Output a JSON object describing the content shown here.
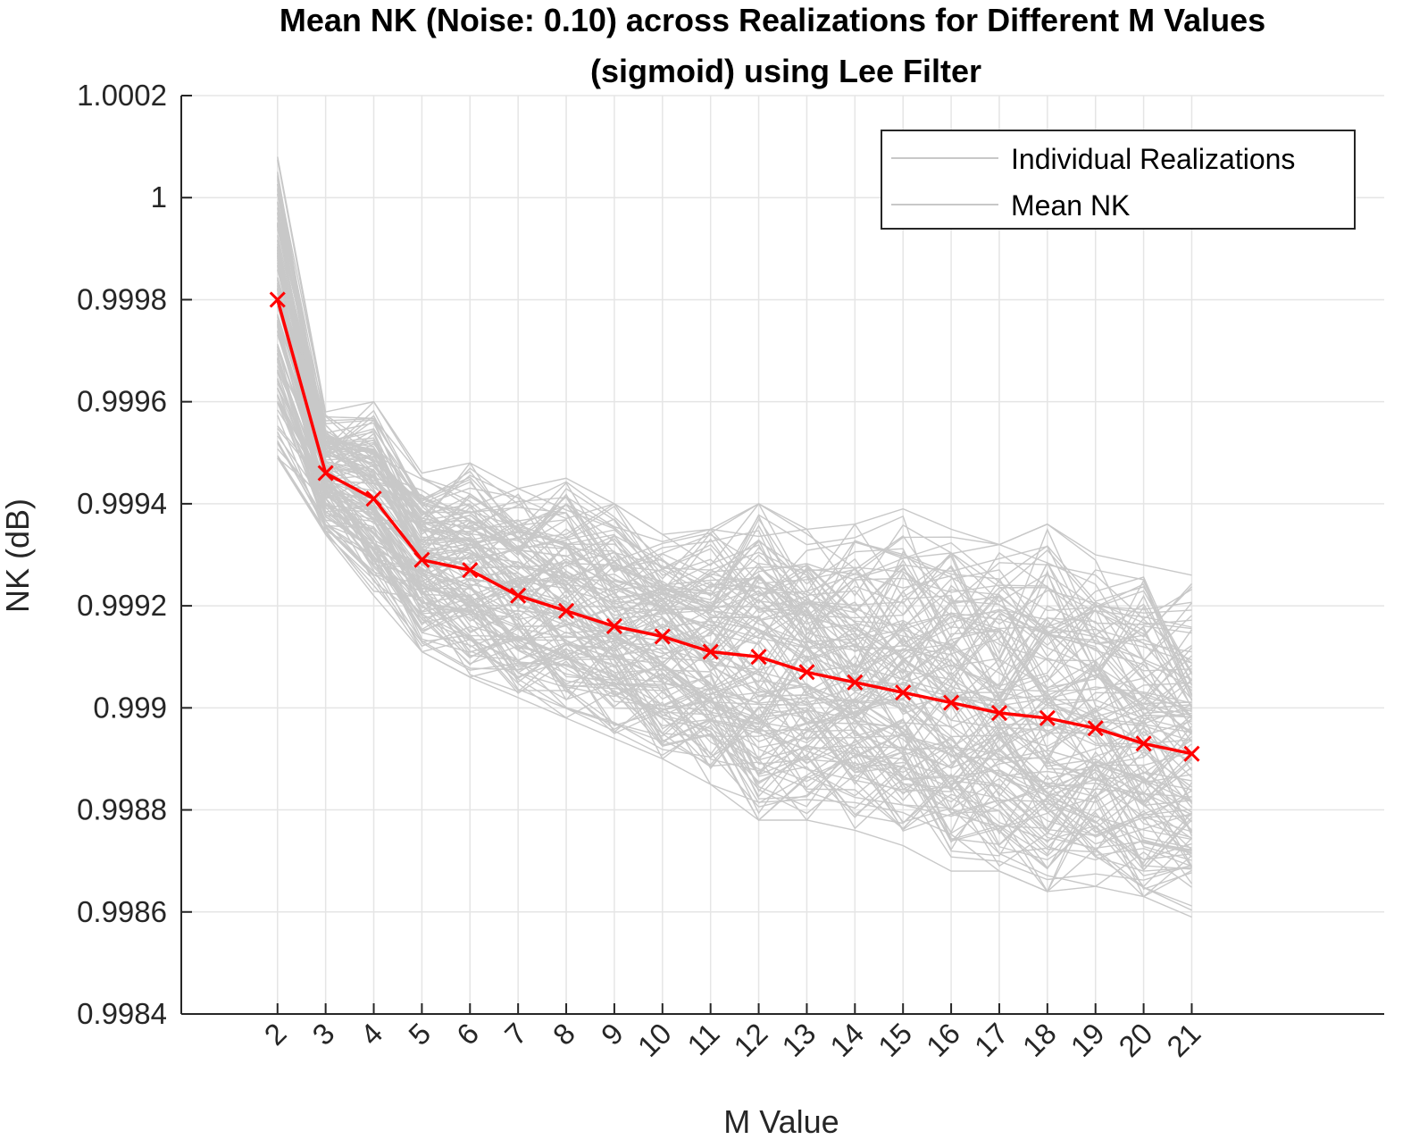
{
  "chart_data": {
    "type": "line",
    "title_line1": "Mean NK (Noise: 0.10) across Realizations for Different M Values",
    "title_line2": "(sigmoid) using Lee Filter",
    "xlabel": "M Value",
    "ylabel": "NK (dB)",
    "x": [
      2,
      3,
      4,
      5,
      6,
      7,
      8,
      9,
      10,
      11,
      12,
      13,
      14,
      15,
      16,
      17,
      18,
      19,
      20,
      21
    ],
    "xlim": [
      0,
      25
    ],
    "ylim": [
      0.9984,
      1.0002
    ],
    "yticks": [
      0.9984,
      0.9986,
      0.9988,
      0.999,
      0.9992,
      0.9994,
      0.9996,
      0.9998,
      1,
      1.0002
    ],
    "ytick_labels": [
      "0.9984",
      "0.9986",
      "0.9988",
      "0.999",
      "0.9992",
      "0.9994",
      "0.9996",
      "0.9998",
      "1",
      "1.0002"
    ],
    "xtick_labels": [
      "2",
      "3",
      "4",
      "5",
      "6",
      "7",
      "8",
      "9",
      "10",
      "11",
      "12",
      "13",
      "14",
      "15",
      "16",
      "17",
      "18",
      "19",
      "20",
      "21"
    ],
    "grid": true,
    "legend": {
      "placement": "top-right",
      "entries": [
        "Individual Realizations",
        "Mean NK"
      ]
    },
    "series": [
      {
        "name": "Mean NK",
        "color": "#ff0000",
        "marker": "x",
        "values": [
          0.9998,
          0.99946,
          0.99941,
          0.99929,
          0.99927,
          0.99922,
          0.99919,
          0.99916,
          0.99914,
          0.99911,
          0.9991,
          0.99907,
          0.99905,
          0.99903,
          0.99901,
          0.99899,
          0.99898,
          0.99896,
          0.99893,
          0.99891
        ]
      }
    ],
    "realizations": {
      "name": "Individual Realizations",
      "color": "#c8c8c8",
      "upper": [
        1.00008,
        0.99958,
        0.9996,
        0.99946,
        0.99948,
        0.99943,
        0.99945,
        0.9994,
        0.99934,
        0.99935,
        0.9994,
        0.99935,
        0.99936,
        0.99939,
        0.99935,
        0.99932,
        0.99936,
        0.9993,
        0.99928,
        0.99926
      ],
      "lower": [
        0.99949,
        0.99934,
        0.99922,
        0.99911,
        0.99906,
        0.99902,
        0.99898,
        0.99894,
        0.9989,
        0.99885,
        0.99878,
        0.99878,
        0.99876,
        0.99873,
        0.99868,
        0.99868,
        0.99864,
        0.99865,
        0.99863,
        0.99859
      ]
    }
  }
}
